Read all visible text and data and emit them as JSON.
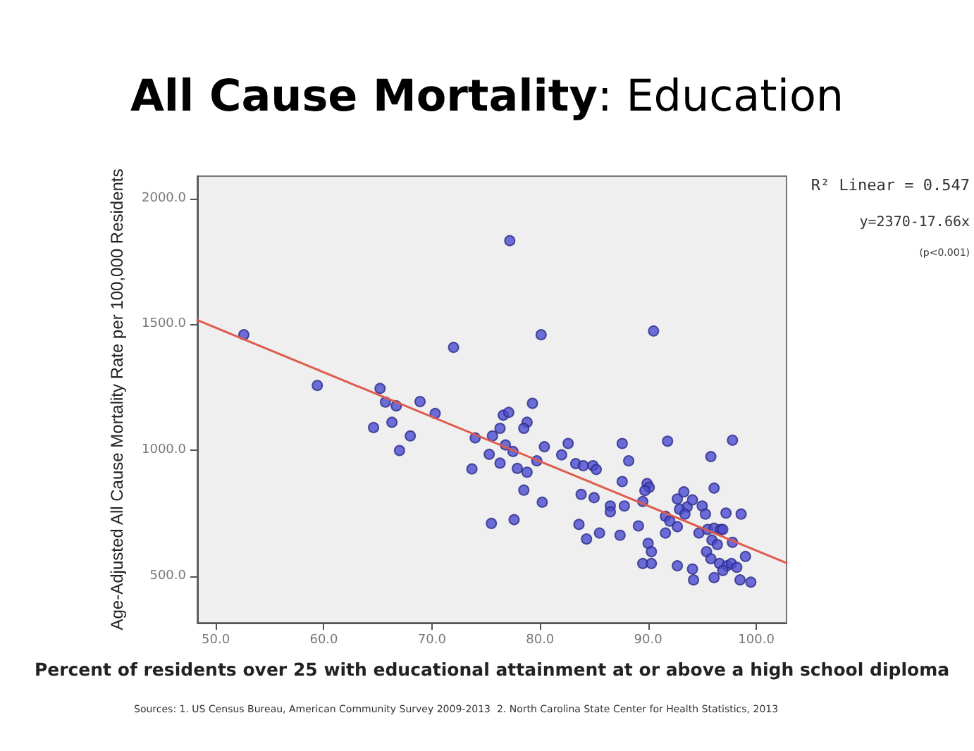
{
  "chart_data": {
    "type": "scatter",
    "title": "All Cause Mortality: Education",
    "xlabel": "Percent of residents over 25 with educational attainment at or above a high school diploma",
    "ylabel": "Age-Adjusted All Cause Mortality Rate per 100,000 Residents",
    "annotations": [
      "R² Linear = 0.547",
      "y=2370-17.66x",
      "(p<0.001)",
      "Sources: 1. US Census Bureau, American Community Survey 2009-2013  2. North Carolina State Center for Health Statistics, 2013"
    ],
    "xlim": [
      48.3,
      102.8
    ],
    "ylim": [
      317,
      2088
    ],
    "xticks": [
      {
        "value": 50,
        "label": "50.0"
      },
      {
        "value": 60,
        "label": "60.0"
      },
      {
        "value": 70,
        "label": "70.0"
      },
      {
        "value": 80,
        "label": "80.0"
      },
      {
        "value": 90,
        "label": "90.0"
      },
      {
        "value": 100,
        "label": "100.0"
      }
    ],
    "yticks": [
      {
        "value": 500,
        "label": "500.0"
      },
      {
        "value": 1000,
        "label": "1000.0"
      },
      {
        "value": 1500,
        "label": "1500.0"
      },
      {
        "value": 2000,
        "label": "2000.0"
      }
    ],
    "grid": false,
    "marker": "circle",
    "series": [
      {
        "color": "#4b4bcf",
        "x": [
          52.6,
          59.4,
          65.2,
          65.7,
          66.7,
          66.3,
          64.6,
          67.0,
          68.0,
          68.9,
          70.3,
          72.0,
          73.7,
          74.0,
          75.3,
          75.6,
          76.3,
          76.3,
          76.8,
          76.6,
          77.1,
          75.5,
          77.2,
          77.5,
          80.1,
          90.5,
          79.3,
          78.8,
          78.5,
          80.4,
          82.6,
          82.0,
          79.7,
          77.9,
          78.8,
          87.6,
          91.8,
          97.8,
          95.8,
          83.3,
          84.0,
          84.9,
          85.2,
          88.2,
          78.5,
          80.2,
          77.6,
          83.8,
          85.0,
          87.6,
          89.9,
          90.1,
          89.7,
          86.5,
          86.5,
          87.8,
          89.5,
          83.6,
          84.3,
          85.5,
          87.4,
          89.1,
          90.0,
          90.3,
          89.5,
          90.3,
          93.3,
          92.7,
          93.6,
          94.1,
          91.6,
          92.0,
          92.9,
          93.4,
          92.7,
          91.6,
          95.0,
          95.3,
          96.1,
          97.2,
          98.6,
          94.7,
          95.5,
          96.1,
          96.7,
          95.9,
          96.4,
          96.9,
          97.8,
          95.4,
          95.8,
          96.6,
          97.3,
          97.7,
          98.2,
          99.0,
          92.7,
          94.1,
          94.2,
          96.1,
          98.5,
          99.5,
          96.9
        ],
        "values": [
          1459,
          1258,
          1246,
          1192,
          1177,
          1112,
          1091,
          1000,
          1058,
          1194,
          1147,
          1409,
          927,
          1050,
          985,
          1058,
          1088,
          950,
          1022,
          1140,
          1151,
          711,
          1832,
          996,
          1459,
          1474,
          1187,
          1112,
          1088,
          1015,
          1028,
          983,
          959,
          929,
          914,
          1028,
          1037,
          1041,
          976,
          948,
          940,
          940,
          925,
          959,
          843,
          795,
          726,
          826,
          813,
          877,
          869,
          854,
          841,
          780,
          757,
          780,
          798,
          707,
          649,
          673,
          664,
          701,
          632,
          599,
          552,
          552,
          836,
          808,
          776,
          804,
          739,
          720,
          767,
          748,
          698,
          673,
          780,
          748,
          851,
          752,
          748,
          673,
          687,
          692,
          687,
          645,
          627,
          687,
          636,
          599,
          571,
          552,
          543,
          552,
          537,
          580,
          543,
          530,
          487,
          496,
          487,
          478,
          524
        ]
      },
      {
        "type": "line",
        "color": "#e05a4e",
        "marker": "none",
        "line_style": "solid",
        "x": [
          48.3,
          102.8
        ],
        "values": [
          1517,
          554
        ]
      }
    ]
  }
}
